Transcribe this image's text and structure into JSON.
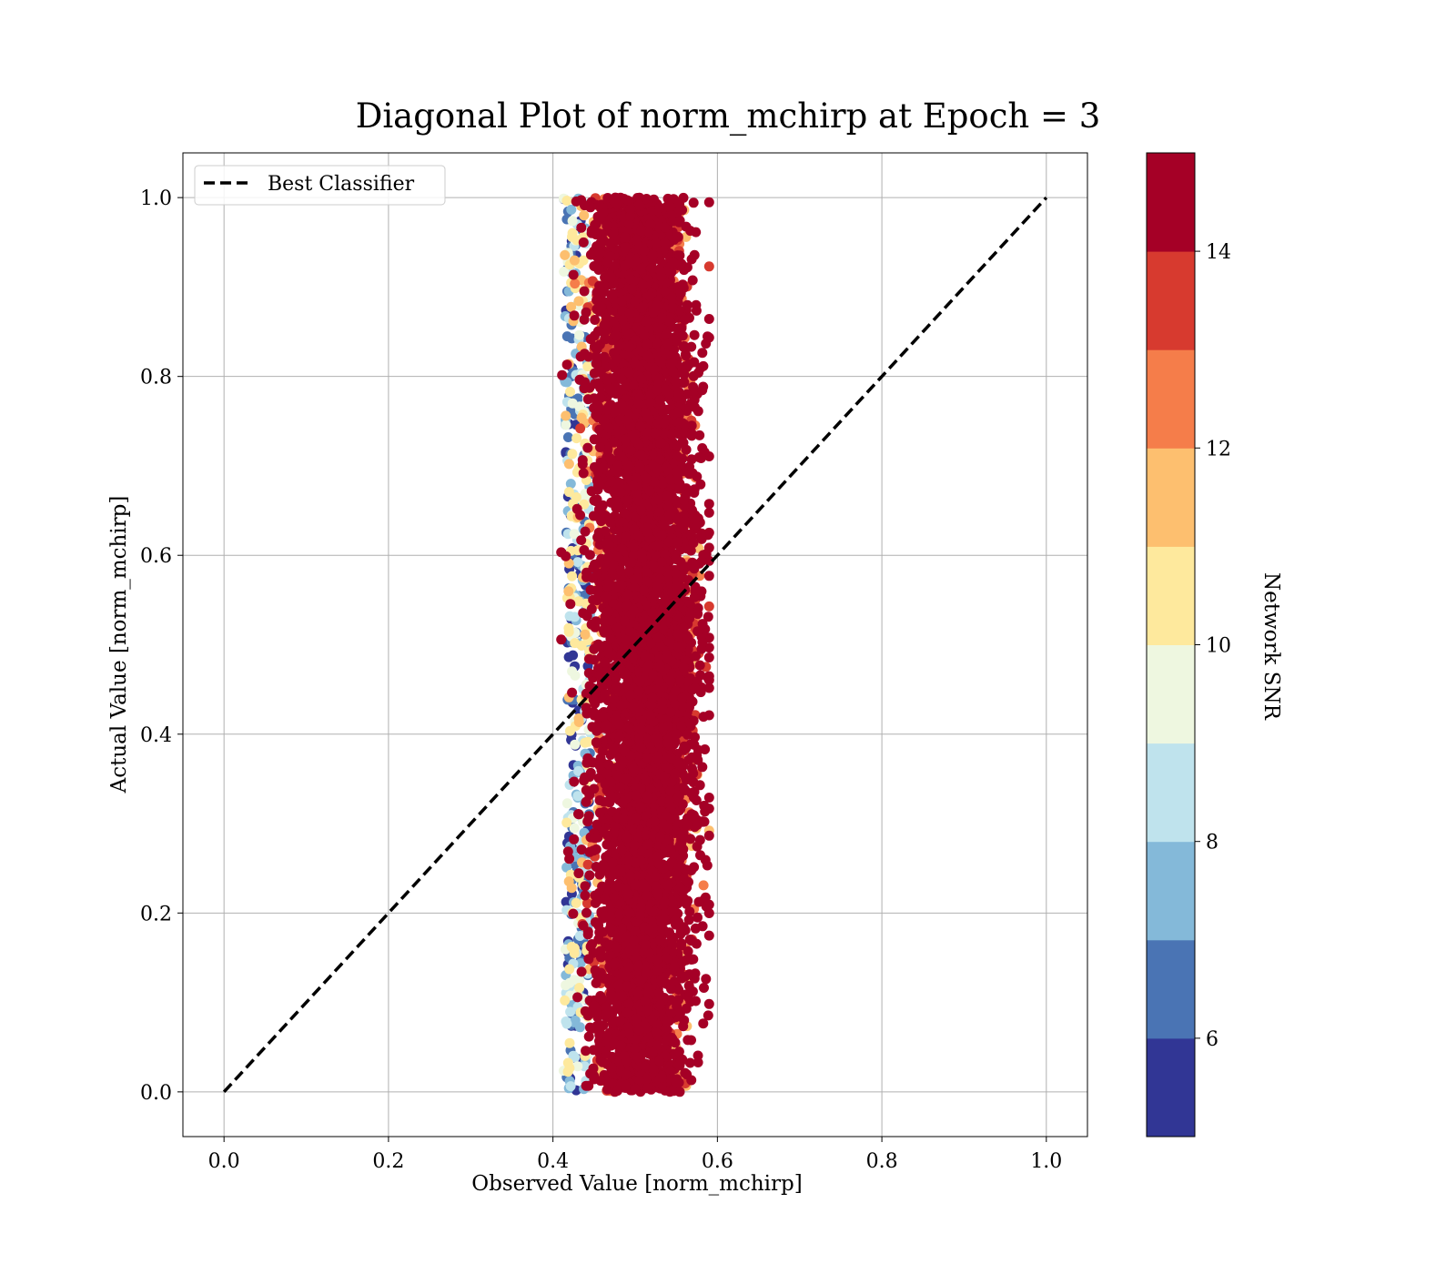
{
  "chart_data": {
    "type": "scatter",
    "title": "Diagonal Plot of norm_mchirp at Epoch = 3",
    "xlabel": "Observed Value [norm_mchirp]",
    "ylabel": "Actual Value [norm_mchirp]",
    "xlim": [
      -0.05,
      1.05
    ],
    "ylim": [
      -0.05,
      1.05
    ],
    "x_ticks": [
      "0.0",
      "0.2",
      "0.4",
      "0.6",
      "0.8",
      "1.0"
    ],
    "y_ticks": [
      "0.0",
      "0.2",
      "0.4",
      "0.6",
      "0.8",
      "1.0"
    ],
    "grid": true,
    "legend": {
      "placement": "upper-left",
      "entries": [
        {
          "label": "Best Classifier",
          "style": "dashed",
          "color": "#000000"
        }
      ]
    },
    "reference_line": {
      "name": "Best Classifier",
      "x": [
        0.0,
        1.0
      ],
      "y": [
        0.0,
        1.0
      ]
    },
    "scatter_cloud": {
      "description_of_distribution": "Vertical band of predictions centered near observed 0.51 across actual 0.0-1.0; high-SNR points concentrated in center, low-SNR points on left edge",
      "observed_center": 0.51,
      "observed_range": [
        0.41,
        0.59
      ],
      "actual_range": [
        0.0,
        1.0
      ],
      "snr_range": [
        5,
        15
      ],
      "approximate_point_count": 40000
    },
    "colorbar": {
      "label": "Network SNR",
      "range": [
        5,
        15
      ],
      "ticks": [
        "6",
        "8",
        "10",
        "12",
        "14"
      ],
      "bins": [
        5,
        6,
        7,
        8,
        9,
        10,
        11,
        12,
        13,
        14,
        15
      ],
      "colors": [
        "#313695",
        "#4a74b4",
        "#84b9d9",
        "#bfe3ed",
        "#eef7e0",
        "#fee99d",
        "#fdbf6f",
        "#f57d4a",
        "#d73a2f",
        "#a50026"
      ]
    }
  }
}
